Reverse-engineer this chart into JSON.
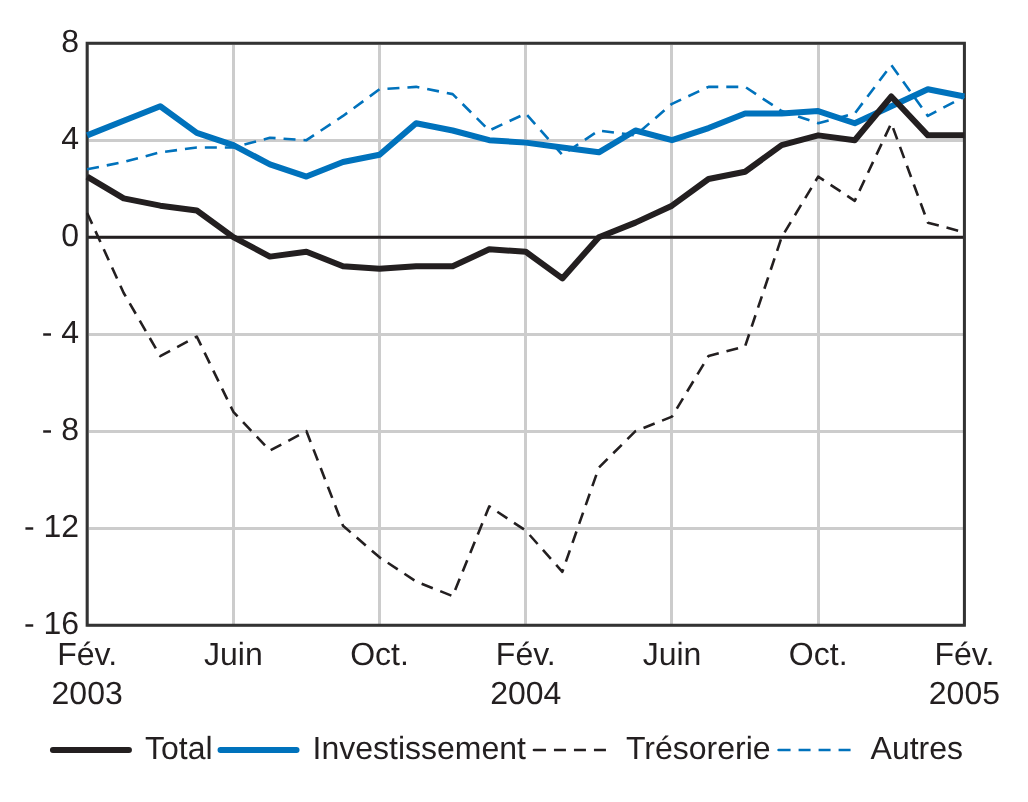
{
  "chart_data": {
    "type": "line",
    "categories": [
      "Fév. 2003",
      null,
      null,
      null,
      "Juin",
      null,
      null,
      null,
      "Oct.",
      null,
      null,
      null,
      "Fév. 2004",
      null,
      null,
      null,
      "Juin",
      null,
      null,
      null,
      "Oct.",
      null,
      null,
      null,
      "Fév. 2005"
    ],
    "series": [
      {
        "name": "Total",
        "color": "#231f20",
        "line_style": "solid",
        "values": [
          2.5,
          1.6,
          1.3,
          1.1,
          0,
          -0.8,
          -0.6,
          -1.2,
          -1.3,
          -1.2,
          -1.2,
          -0.5,
          -0.6,
          -1.7,
          0,
          0.6,
          1.3,
          2.4,
          2.7,
          3.8,
          4.2,
          4.0,
          5.8,
          4.2,
          4.2
        ]
      },
      {
        "name": "Investissement",
        "color": "#0072bc",
        "line_style": "solid",
        "values": [
          4.2,
          4.8,
          5.4,
          4.3,
          3.8,
          3.0,
          2.5,
          3.1,
          3.4,
          4.7,
          4.4,
          4.0,
          3.9,
          3.7,
          3.5,
          4.4,
          4.0,
          4.5,
          5.1,
          5.1,
          5.2,
          4.7,
          5.4,
          6.1,
          5.8
        ]
      },
      {
        "name": "Trésorerie",
        "color": "#231f20",
        "line_style": "dashed",
        "values": [
          1.0,
          -2.3,
          -4.9,
          -4.1,
          -7.2,
          -8.8,
          -8.0,
          -11.9,
          -13.2,
          -14.2,
          -14.8,
          -11.1,
          -12.1,
          -13.8,
          -9.5,
          -8.0,
          -7.4,
          -4.9,
          -4.5,
          0,
          2.5,
          1.5,
          4.7,
          0.6,
          0.2
        ]
      },
      {
        "name": "Autres",
        "color": "#0072bc",
        "line_style": "dashed",
        "values": [
          2.8,
          3.1,
          3.5,
          3.7,
          3.7,
          4.1,
          4.0,
          5.0,
          6.1,
          6.2,
          5.9,
          4.4,
          5.1,
          3.4,
          4.4,
          4.2,
          5.5,
          6.2,
          6.2,
          5.2,
          4.7,
          5.1,
          7.1,
          5.0,
          5.8
        ]
      }
    ],
    "ylim": [
      -16,
      8
    ],
    "yticks": [
      {
        "value": -16,
        "label": "- 16"
      },
      {
        "value": -12,
        "label": "- 12"
      },
      {
        "value": -8,
        "label": "- 8"
      },
      {
        "value": -4,
        "label": "- 4"
      },
      0,
      4,
      8
    ],
    "ref_lines": [
      {
        "axis": "y",
        "value": 0,
        "color": "#231f20"
      }
    ],
    "grid": true,
    "legend": "bottom",
    "marker": "none"
  }
}
